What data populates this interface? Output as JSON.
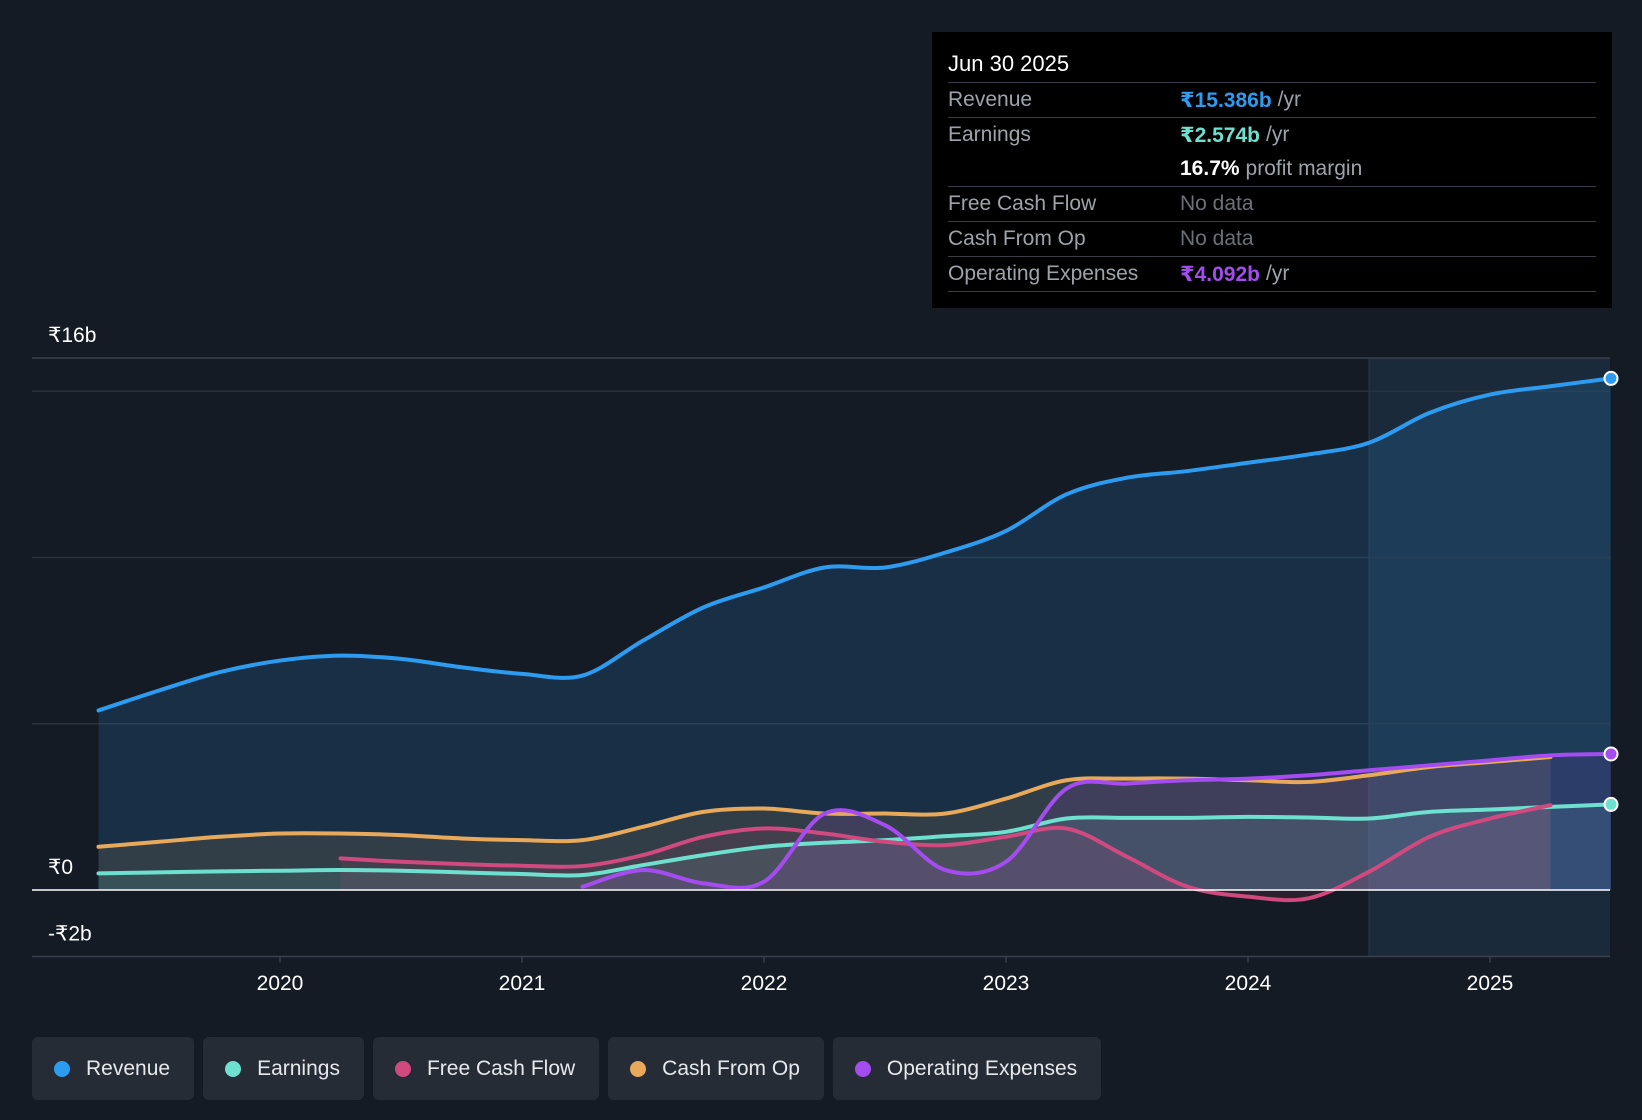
{
  "chart_data": {
    "type": "area",
    "x_unit": "year",
    "y_unit": "INR billions",
    "ylim": [
      -2,
      16
    ],
    "y_ticks": [
      {
        "value": 16,
        "label": "₹16b"
      },
      {
        "value": 0,
        "label": "₹0"
      },
      {
        "value": -2,
        "label": "-₹2b"
      }
    ],
    "x_ticks": [
      {
        "value": 2020,
        "label": "2020"
      },
      {
        "value": 2021,
        "label": "2021"
      },
      {
        "value": 2022,
        "label": "2022"
      },
      {
        "value": 2023,
        "label": "2023"
      },
      {
        "value": 2024,
        "label": "2024"
      },
      {
        "value": 2025,
        "label": "2025"
      }
    ],
    "highlight_start": 2024.5,
    "series": [
      {
        "key": "revenue",
        "name": "Revenue",
        "color": "#2d9cf0",
        "fill": true,
        "points": [
          [
            2019.25,
            5.4
          ],
          [
            2019.5,
            6.0
          ],
          [
            2019.75,
            6.55
          ],
          [
            2020.0,
            6.9
          ],
          [
            2020.25,
            7.05
          ],
          [
            2020.5,
            6.95
          ],
          [
            2020.75,
            6.7
          ],
          [
            2021.0,
            6.5
          ],
          [
            2021.25,
            6.45
          ],
          [
            2021.5,
            7.5
          ],
          [
            2021.75,
            8.5
          ],
          [
            2022.0,
            9.1
          ],
          [
            2022.25,
            9.7
          ],
          [
            2022.5,
            9.7
          ],
          [
            2022.75,
            10.15
          ],
          [
            2023.0,
            10.8
          ],
          [
            2023.25,
            11.9
          ],
          [
            2023.5,
            12.4
          ],
          [
            2023.75,
            12.6
          ],
          [
            2024.0,
            12.85
          ],
          [
            2024.25,
            13.1
          ],
          [
            2024.5,
            13.45
          ],
          [
            2024.75,
            14.35
          ],
          [
            2025.0,
            14.9
          ],
          [
            2025.25,
            15.15
          ],
          [
            2025.5,
            15.386
          ]
        ]
      },
      {
        "key": "cash_from_op",
        "name": "Cash From Op",
        "color": "#e8a95a",
        "fill": true,
        "points": [
          [
            2019.25,
            1.3
          ],
          [
            2019.5,
            1.45
          ],
          [
            2019.75,
            1.6
          ],
          [
            2020.0,
            1.7
          ],
          [
            2020.25,
            1.7
          ],
          [
            2020.5,
            1.65
          ],
          [
            2020.75,
            1.55
          ],
          [
            2021.0,
            1.5
          ],
          [
            2021.25,
            1.5
          ],
          [
            2021.5,
            1.9
          ],
          [
            2021.75,
            2.35
          ],
          [
            2022.0,
            2.45
          ],
          [
            2022.25,
            2.3
          ],
          [
            2022.5,
            2.3
          ],
          [
            2022.75,
            2.3
          ],
          [
            2023.0,
            2.75
          ],
          [
            2023.25,
            3.3
          ],
          [
            2023.5,
            3.35
          ],
          [
            2023.75,
            3.35
          ],
          [
            2024.0,
            3.3
          ],
          [
            2024.25,
            3.25
          ],
          [
            2024.5,
            3.45
          ],
          [
            2024.75,
            3.7
          ],
          [
            2025.0,
            3.85
          ],
          [
            2025.25,
            4.0
          ]
        ]
      },
      {
        "key": "earnings",
        "name": "Earnings",
        "color": "#6ee0cf",
        "fill": true,
        "points": [
          [
            2019.25,
            0.5
          ],
          [
            2019.5,
            0.53
          ],
          [
            2019.75,
            0.56
          ],
          [
            2020.0,
            0.58
          ],
          [
            2020.25,
            0.6
          ],
          [
            2020.5,
            0.58
          ],
          [
            2020.75,
            0.53
          ],
          [
            2021.0,
            0.48
          ],
          [
            2021.25,
            0.45
          ],
          [
            2021.5,
            0.75
          ],
          [
            2021.75,
            1.05
          ],
          [
            2022.0,
            1.3
          ],
          [
            2022.25,
            1.42
          ],
          [
            2022.5,
            1.5
          ],
          [
            2022.75,
            1.62
          ],
          [
            2023.0,
            1.75
          ],
          [
            2023.25,
            2.15
          ],
          [
            2023.5,
            2.17
          ],
          [
            2023.75,
            2.17
          ],
          [
            2024.0,
            2.2
          ],
          [
            2024.25,
            2.18
          ],
          [
            2024.5,
            2.15
          ],
          [
            2024.75,
            2.35
          ],
          [
            2025.0,
            2.42
          ],
          [
            2025.25,
            2.5
          ],
          [
            2025.5,
            2.574
          ]
        ]
      },
      {
        "key": "free_cash_flow",
        "name": "Free Cash Flow",
        "color": "#d0497f",
        "fill": true,
        "points": [
          [
            2020.25,
            0.95
          ],
          [
            2020.5,
            0.85
          ],
          [
            2020.75,
            0.78
          ],
          [
            2021.0,
            0.73
          ],
          [
            2021.25,
            0.72
          ],
          [
            2021.5,
            1.05
          ],
          [
            2021.75,
            1.6
          ],
          [
            2022.0,
            1.85
          ],
          [
            2022.25,
            1.7
          ],
          [
            2022.5,
            1.45
          ],
          [
            2022.75,
            1.35
          ],
          [
            2023.0,
            1.6
          ],
          [
            2023.25,
            1.85
          ],
          [
            2023.5,
            1.0
          ],
          [
            2023.75,
            0.1
          ],
          [
            2024.0,
            -0.2
          ],
          [
            2024.25,
            -0.25
          ],
          [
            2024.5,
            0.55
          ],
          [
            2024.75,
            1.6
          ],
          [
            2025.0,
            2.15
          ],
          [
            2025.25,
            2.55
          ]
        ]
      },
      {
        "key": "operating_expenses",
        "name": "Operating Expenses",
        "color": "#a44cf0",
        "fill": true,
        "points": [
          [
            2021.25,
            0.1
          ],
          [
            2021.5,
            0.6
          ],
          [
            2021.75,
            0.2
          ],
          [
            2022.0,
            0.25
          ],
          [
            2022.25,
            2.3
          ],
          [
            2022.5,
            1.95
          ],
          [
            2022.75,
            0.6
          ],
          [
            2023.0,
            0.85
          ],
          [
            2023.25,
            3.05
          ],
          [
            2023.5,
            3.2
          ],
          [
            2023.75,
            3.3
          ],
          [
            2024.0,
            3.35
          ],
          [
            2024.25,
            3.45
          ],
          [
            2024.5,
            3.6
          ],
          [
            2024.75,
            3.75
          ],
          [
            2025.0,
            3.9
          ],
          [
            2025.25,
            4.05
          ],
          [
            2025.5,
            4.092
          ]
        ]
      }
    ]
  },
  "tooltip": {
    "date": "Jun 30 2025",
    "revenue": {
      "label": "Revenue",
      "value": "₹15.386b",
      "unit": "/yr"
    },
    "earnings": {
      "label": "Earnings",
      "value": "₹2.574b",
      "unit": "/yr"
    },
    "profit_margin": {
      "value": "16.7%",
      "label": "profit margin"
    },
    "free_cash_flow": {
      "label": "Free Cash Flow",
      "value": "No data"
    },
    "cash_from_op": {
      "label": "Cash From Op",
      "value": "No data"
    },
    "operating_expenses": {
      "label": "Operating Expenses",
      "value": "₹4.092b",
      "unit": "/yr"
    }
  },
  "legend": [
    {
      "key": "revenue",
      "label": "Revenue",
      "color": "#2d9cf0"
    },
    {
      "key": "earnings",
      "label": "Earnings",
      "color": "#6ee0cf"
    },
    {
      "key": "free_cash_flow",
      "label": "Free Cash Flow",
      "color": "#d0497f"
    },
    {
      "key": "cash_from_op",
      "label": "Cash From Op",
      "color": "#e8a95a"
    },
    {
      "key": "operating_expenses",
      "label": "Operating Expenses",
      "color": "#a44cf0"
    }
  ],
  "colors": {
    "background": "#151b24",
    "gridline": "#2a313c",
    "zero_line": "#ffffff"
  }
}
